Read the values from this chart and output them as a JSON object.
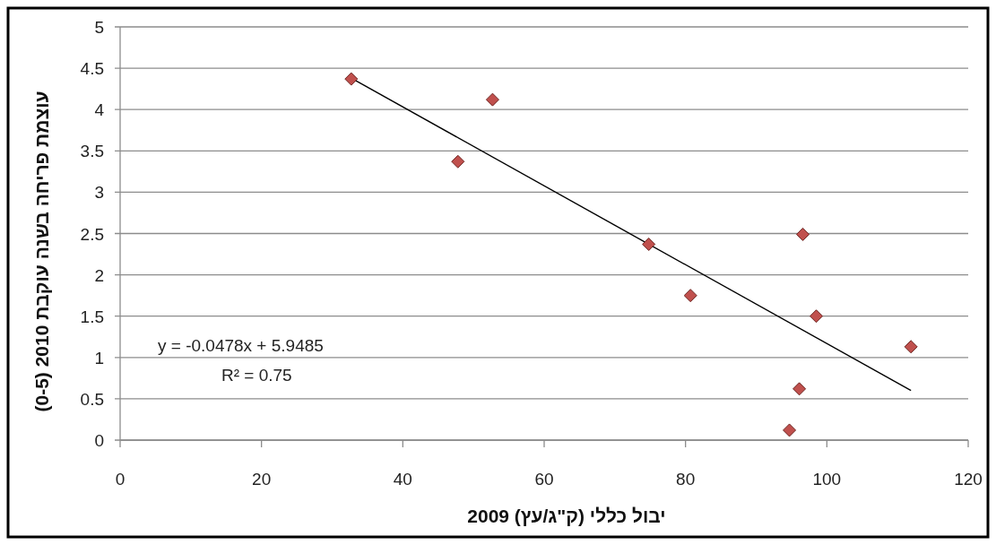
{
  "chart_data": {
    "type": "scatter",
    "xlabel": "יבול כללי (ק\"ג/עץ) 2009",
    "ylabel": "עוצמת פריחה בשנה עוקבת 2010 (0-5)",
    "xlim": [
      0,
      120
    ],
    "xticks": [
      0,
      20,
      40,
      60,
      80,
      100,
      120
    ],
    "ylim": [
      0,
      5
    ],
    "yticks": [
      0,
      0.5,
      1,
      1.5,
      2,
      2.5,
      3,
      3.5,
      4,
      4.5,
      5
    ],
    "grid": "y",
    "marker": "diamond",
    "series": [
      {
        "color": "#c0504d",
        "x": [
          32.7,
          47.8,
          52.7,
          74.8,
          80.7,
          96.6,
          98.5,
          111.9,
          96.1,
          94.7
        ],
        "values": [
          4.37,
          3.37,
          4.12,
          2.37,
          1.75,
          2.49,
          1.5,
          1.13,
          0.62,
          0.12
        ]
      },
      {
        "type": "line",
        "marker": "none",
        "line_style": "solid",
        "color": "#000000",
        "x": [
          32.7,
          111.9
        ],
        "values": [
          4.38,
          0.6
        ]
      }
    ],
    "annotations": [
      "y = -0.0478x + 5.9485",
      "R² = 0.75"
    ]
  }
}
